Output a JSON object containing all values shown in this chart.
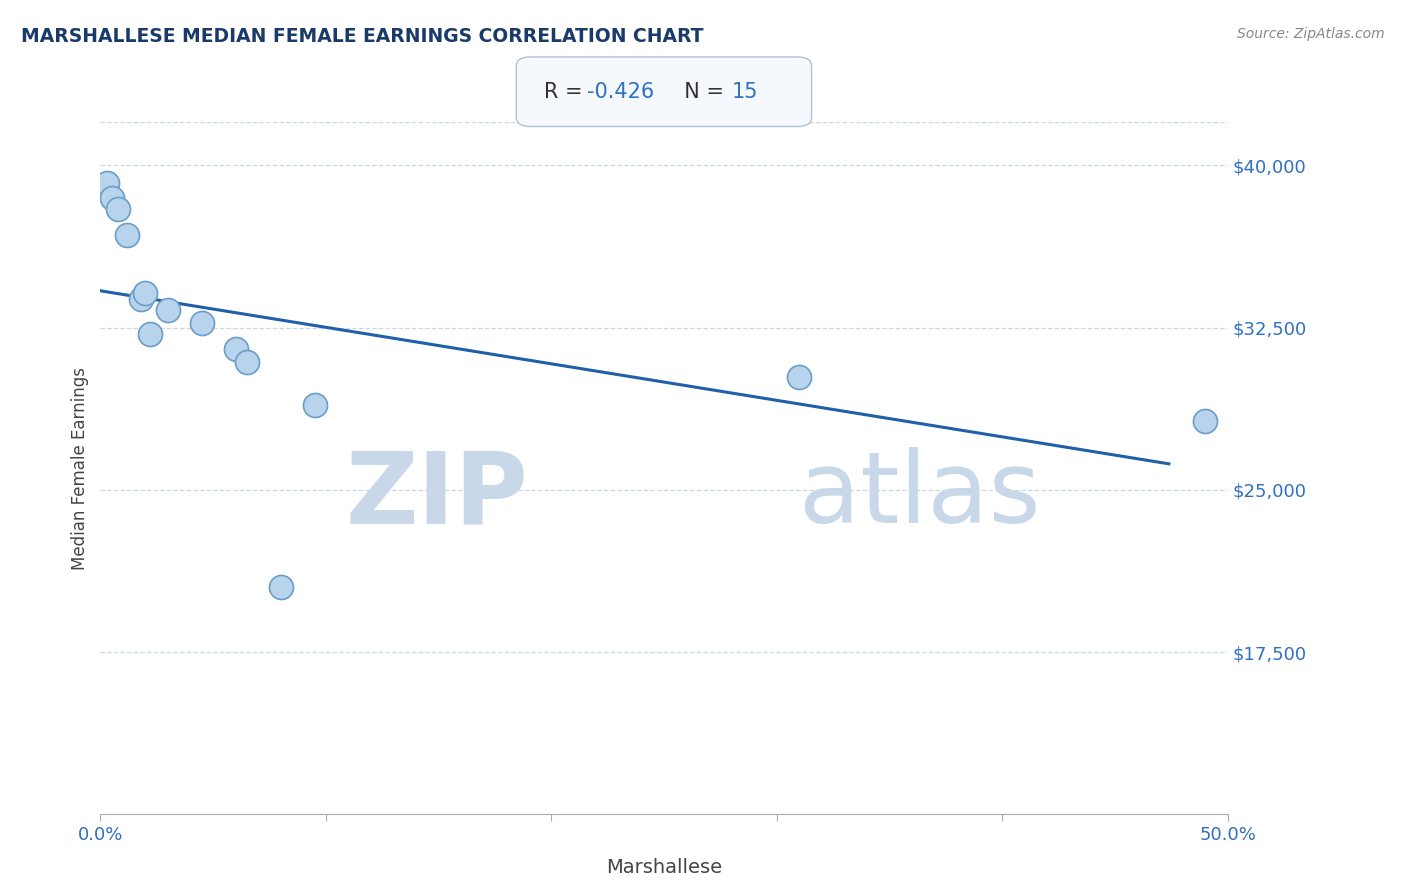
{
  "title": "MARSHALLESE MEDIAN FEMALE EARNINGS CORRELATION CHART",
  "source": "Source: ZipAtlas.com",
  "xlabel": "Marshallese",
  "ylabel": "Median Female Earnings",
  "R": -0.426,
  "N": 15,
  "x_min": 0.0,
  "x_max": 0.5,
  "y_min": 10000,
  "y_max": 42000,
  "y_ticks": [
    17500,
    25000,
    32500,
    40000
  ],
  "x_ticks": [
    0.0,
    0.1,
    0.2,
    0.3,
    0.4,
    0.5
  ],
  "x_tick_labels": [
    "0.0%",
    "",
    "",
    "",
    "",
    "50.0%"
  ],
  "watermark_zip": "ZIP",
  "watermark_atlas": "atlas",
  "scatter_points": [
    [
      0.003,
      39200
    ],
    [
      0.005,
      38500
    ],
    [
      0.008,
      38000
    ],
    [
      0.012,
      36800
    ],
    [
      0.018,
      33800
    ],
    [
      0.02,
      34100
    ],
    [
      0.022,
      32200
    ],
    [
      0.03,
      33300
    ],
    [
      0.045,
      32700
    ],
    [
      0.06,
      31500
    ],
    [
      0.065,
      30900
    ],
    [
      0.08,
      20500
    ],
    [
      0.095,
      28900
    ],
    [
      0.31,
      30200
    ],
    [
      0.49,
      28200
    ]
  ],
  "line_x": [
    0.0,
    0.474
  ],
  "line_y": [
    34200,
    26200
  ],
  "dot_color": "#b8d4ec",
  "dot_edge_color": "#6a9dc8",
  "dot_size": 300,
  "line_color": "#2060a8",
  "title_color": "#1a3a6a",
  "watermark_zip_color": "#c8d8e8",
  "watermark_atlas_color": "#c8d8e8",
  "tick_label_color": "#3070c0",
  "grid_color": "#c8d8e8",
  "box_fill_color": "#f5f8fc",
  "box_edge_color": "#b0c0d8",
  "r_label_color": "#333333",
  "r_value_color": "#3070c0",
  "n_label_color": "#333333",
  "n_value_color": "#3070c0",
  "source_color": "#888888"
}
